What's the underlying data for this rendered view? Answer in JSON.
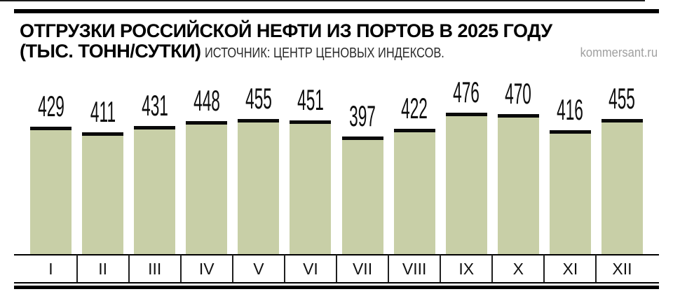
{
  "header": {
    "title_line1": "ОТГРУЗКИ РОССИЙСКОЙ НЕФТИ ИЗ ПОРТОВ В 2025 ГОДУ",
    "title_line2": "(ТЫС. ТОНН/СУТКИ)",
    "source": "ИСТОЧНИК: ЦЕНТР ЦЕНОВЫХ ИНДЕКСОВ.",
    "site": "kommersant.ru"
  },
  "chart_data": {
    "type": "bar",
    "title": "ОТГРУЗКИ РОССИЙСКОЙ НЕФТИ ИЗ ПОРТОВ В 2025 ГОДУ (ТЫС. ТОНН/СУТКИ)",
    "source": "ИСТОЧНИК: ЦЕНТР ЦЕНОВЫХ ИНДЕКСОВ.",
    "categories": [
      "I",
      "II",
      "III",
      "IV",
      "V",
      "VI",
      "VII",
      "VIII",
      "IX",
      "X",
      "XI",
      "XII"
    ],
    "values": [
      429,
      411,
      431,
      448,
      455,
      451,
      397,
      422,
      476,
      470,
      416,
      455
    ],
    "xlabel": "",
    "ylabel": "тыс. тонн/сутки",
    "ylim": [
      0,
      476
    ],
    "grid": false,
    "legend": "none",
    "data_labels": true,
    "bar_color": "#c8cfa7",
    "cap_color": "#0a0a0a",
    "text_color": "#000000",
    "credit_color": "#a0a0a0"
  }
}
